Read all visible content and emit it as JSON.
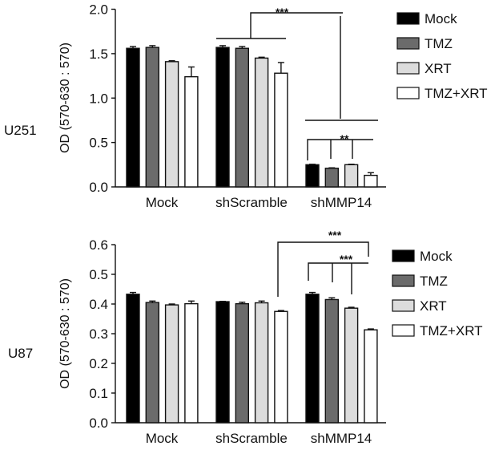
{
  "chart_data": [
    {
      "type": "bar",
      "panel_label": "U251",
      "ylabel": "OD (570-630 : 570)",
      "ylim": [
        0,
        2.0
      ],
      "yticks": [
        "0.0",
        "0.5",
        "1.0",
        "1.5",
        "2.0"
      ],
      "tick_values": [
        0,
        0.5,
        1.0,
        1.5,
        2.0
      ],
      "categories": [
        "Mock",
        "shScramble",
        "shMMP14"
      ],
      "series": [
        {
          "name": "Mock",
          "color": "#000000",
          "values": [
            1.56,
            1.57,
            0.25
          ],
          "errors": [
            0.02,
            0.02,
            0.005
          ]
        },
        {
          "name": "TMZ",
          "color": "#6b6b6b",
          "values": [
            1.57,
            1.56,
            0.21
          ],
          "errors": [
            0.02,
            0.02,
            0.005
          ]
        },
        {
          "name": "XRT",
          "color": "#dcdcdc",
          "values": [
            1.41,
            1.45,
            0.25
          ],
          "errors": [
            0.01,
            0.01,
            0.005
          ]
        },
        {
          "name": "TMZ+XRT",
          "color": "#ffffff",
          "values": [
            1.24,
            1.28,
            0.13
          ],
          "errors": [
            0.11,
            0.12,
            0.03
          ]
        }
      ],
      "annotations": [
        "***",
        "**"
      ],
      "legend": "top-right"
    },
    {
      "type": "bar",
      "panel_label": "U87",
      "ylabel": "OD (570-630 : 570)",
      "ylim": [
        0,
        0.6
      ],
      "yticks": [
        "0.0",
        "0.1",
        "0.2",
        "0.3",
        "0.4",
        "0.5",
        "0.6"
      ],
      "tick_values": [
        0,
        0.1,
        0.2,
        0.3,
        0.4,
        0.5,
        0.6
      ],
      "categories": [
        "Mock",
        "shScramble",
        "shMMP14"
      ],
      "series": [
        {
          "name": "Mock",
          "color": "#000000",
          "values": [
            0.433,
            0.408,
            0.433
          ],
          "errors": [
            0.006,
            0.001,
            0.006
          ]
        },
        {
          "name": "TMZ",
          "color": "#6b6b6b",
          "values": [
            0.405,
            0.401,
            0.415
          ],
          "errors": [
            0.005,
            0.005,
            0.006
          ]
        },
        {
          "name": "XRT",
          "color": "#dcdcdc",
          "values": [
            0.397,
            0.404,
            0.386
          ],
          "errors": [
            0.003,
            0.006,
            0.003
          ]
        },
        {
          "name": "TMZ+XRT",
          "color": "#ffffff",
          "values": [
            0.401,
            0.375,
            0.313
          ],
          "errors": [
            0.009,
            0.003,
            0.003
          ]
        }
      ],
      "annotations": [
        "***",
        "***"
      ],
      "legend": "right"
    }
  ]
}
